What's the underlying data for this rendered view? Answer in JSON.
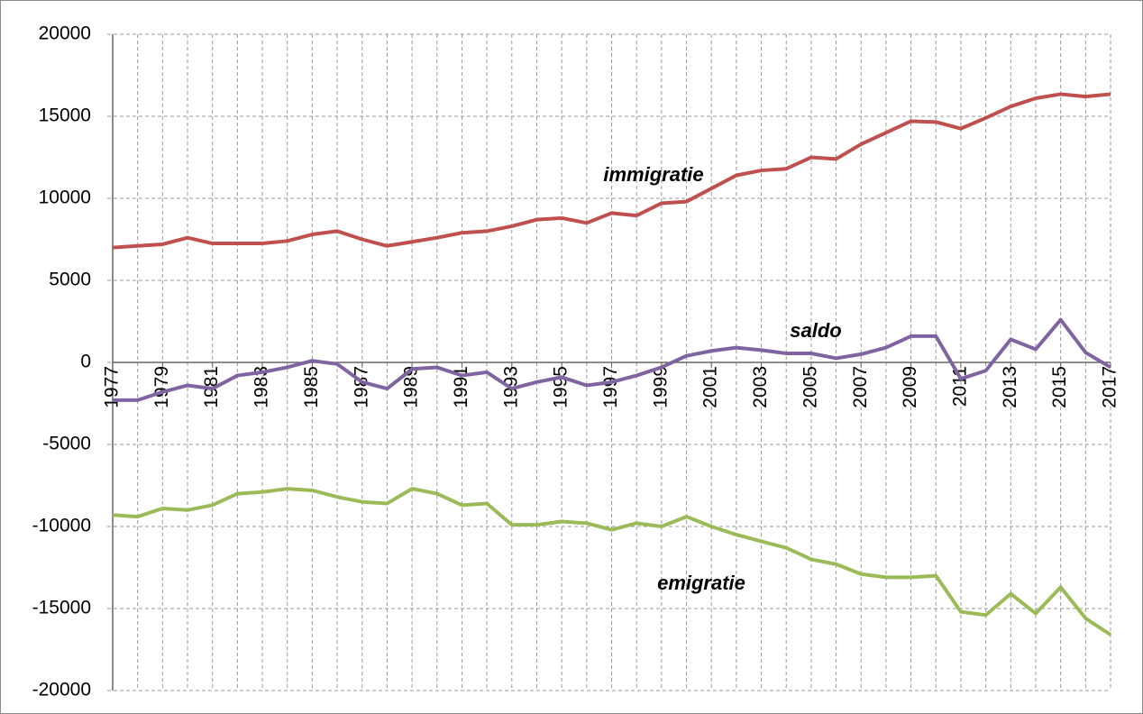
{
  "chart_data": {
    "type": "line",
    "x": [
      1977,
      1978,
      1979,
      1980,
      1981,
      1982,
      1983,
      1984,
      1985,
      1986,
      1987,
      1988,
      1989,
      1990,
      1991,
      1992,
      1993,
      1994,
      1995,
      1996,
      1997,
      1998,
      1999,
      2000,
      2001,
      2002,
      2003,
      2004,
      2005,
      2006,
      2007,
      2008,
      2009,
      2010,
      2011,
      2012,
      2013,
      2014,
      2015,
      2016,
      2017
    ],
    "xlim": [
      1977,
      2017
    ],
    "xticks": [
      1977,
      1979,
      1981,
      1983,
      1985,
      1987,
      1989,
      1991,
      1993,
      1995,
      1997,
      1999,
      2001,
      2003,
      2005,
      2007,
      2009,
      2011,
      2013,
      2015,
      2017
    ],
    "ylim": [
      -20000,
      20000
    ],
    "yticks": [
      -20000,
      -15000,
      -10000,
      -5000,
      0,
      5000,
      10000,
      15000,
      20000
    ],
    "grid": true,
    "series": [
      {
        "name": "immigratie",
        "color": "#c0504d",
        "values": [
          7000,
          7100,
          7200,
          7600,
          7250,
          7250,
          7250,
          7400,
          7800,
          8000,
          7500,
          7100,
          7350,
          7600,
          7900,
          8000,
          8300,
          8700,
          8800,
          8500,
          9100,
          8950,
          9700,
          9800,
          10600,
          11400,
          11700,
          11800,
          12500,
          12400,
          13300,
          14000,
          14700,
          14650,
          14250,
          14900,
          15600,
          16100,
          16350,
          16200,
          16350
        ]
      },
      {
        "name": "saldo",
        "color": "#8064a2",
        "values": [
          -2300,
          -2300,
          -1800,
          -1400,
          -1600,
          -800,
          -600,
          -300,
          100,
          -100,
          -1200,
          -1600,
          -400,
          -300,
          -800,
          -600,
          -1600,
          -1200,
          -900,
          -1400,
          -1200,
          -800,
          -300,
          400,
          700,
          900,
          750,
          550,
          550,
          250,
          500,
          900,
          1600,
          1600,
          -1000,
          -500,
          1400,
          800,
          2600,
          600,
          -300
        ]
      },
      {
        "name": "emigratie",
        "color": "#9bbb59",
        "values": [
          -9300,
          -9400,
          -8900,
          -9000,
          -8700,
          -8000,
          -7900,
          -7700,
          -7800,
          -8200,
          -8500,
          -8600,
          -7700,
          -8000,
          -8700,
          -8600,
          -9900,
          -9900,
          -9700,
          -9800,
          -10200,
          -9800,
          -10000,
          -9400,
          -10000,
          -10500,
          -10900,
          -11300,
          -12000,
          -12300,
          -12900,
          -13100,
          -13100,
          -13000,
          -15200,
          -15400,
          -14100,
          -15300,
          -13700,
          -15600,
          -16600
        ]
      }
    ]
  }
}
